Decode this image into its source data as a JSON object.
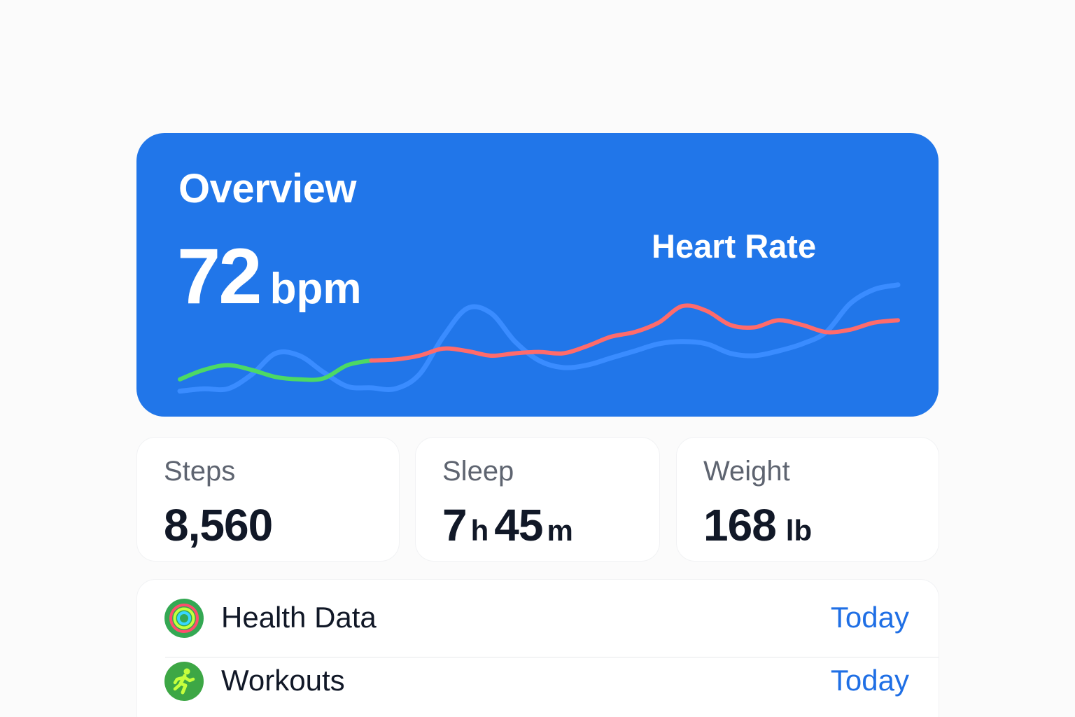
{
  "overview": {
    "title": "Overview",
    "heart_rate_value": "72",
    "heart_rate_unit": "bpm",
    "chart_label": "Heart Rate",
    "colors": {
      "card_background": "#2176e9",
      "line_resting": "#4cd964",
      "line_elevated": "#ff6b6b",
      "line_trend": "#3a8cff"
    }
  },
  "chart_data": {
    "type": "line",
    "title": "Heart Rate",
    "xlabel": "",
    "ylabel": "",
    "x": [
      0,
      1,
      2,
      3,
      4,
      5,
      6,
      7,
      8,
      9,
      10,
      11,
      12,
      13,
      14,
      15,
      16,
      17,
      18,
      19,
      20,
      21,
      22,
      23,
      24,
      25,
      26,
      27,
      28,
      29,
      30
    ],
    "series": [
      {
        "name": "",
        "values": [
          0.3,
          0.5,
          0.6,
          0.5,
          0.35,
          0.3,
          0.32,
          0.6,
          0.7,
          0.72,
          0.8,
          0.95,
          0.9,
          0.8,
          0.85,
          0.88,
          0.85,
          1.0,
          1.2,
          1.3,
          1.5,
          1.85,
          1.75,
          1.45,
          1.4,
          1.55,
          1.45,
          1.3,
          1.35,
          1.5,
          1.55
        ],
        "segments": [
          {
            "from": 0,
            "to": 8,
            "status": "resting"
          },
          {
            "from": 8,
            "to": 30,
            "status": "elevated"
          }
        ]
      },
      {
        "name": "",
        "values": [
          0.05,
          0.1,
          0.1,
          0.4,
          0.85,
          0.8,
          0.45,
          0.15,
          0.12,
          0.1,
          0.4,
          1.2,
          1.8,
          1.7,
          1.1,
          0.7,
          0.55,
          0.6,
          0.75,
          0.9,
          1.05,
          1.1,
          1.05,
          0.85,
          0.8,
          0.9,
          1.05,
          1.3,
          1.9,
          2.2,
          2.3
        ]
      }
    ],
    "grid": false,
    "legend": "none"
  },
  "stats": {
    "steps": {
      "label": "Steps",
      "value": "8,560"
    },
    "sleep": {
      "label": "Sleep",
      "hours": "7",
      "hours_unit": "h",
      "minutes": "45",
      "minutes_unit": "m"
    },
    "weight": {
      "label": "Weight",
      "value": "168",
      "unit": "lb"
    }
  },
  "list": {
    "items": [
      {
        "label": "Health Data",
        "value": "Today",
        "icon": "activity-rings-icon"
      },
      {
        "label": "Workouts",
        "value": "Today",
        "icon": "running-figure-icon"
      }
    ]
  }
}
